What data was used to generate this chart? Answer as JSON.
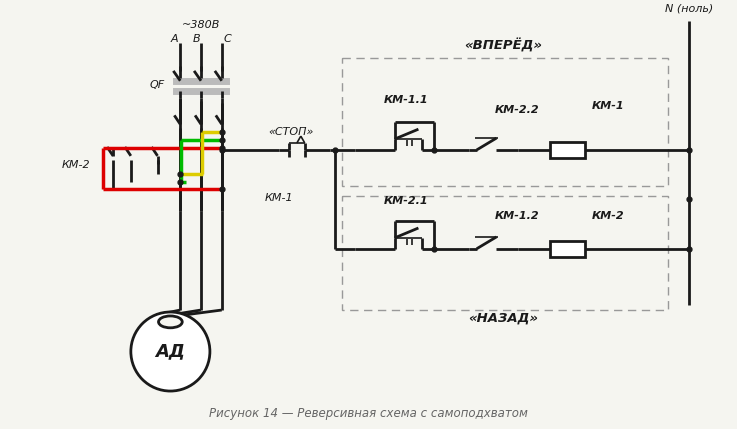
{
  "title": "Рисунок 14 — Реверсивная схема с самоподхватом",
  "title_color": "#666666",
  "title_fontsize": 8.5,
  "bg_color": "#f5f5f0",
  "line_color": "#1a1a1a",
  "dashed_box_color": "#999999",
  "label_380": "~380В",
  "label_A": "A",
  "label_B": "B",
  "label_C": "C",
  "label_QF": "QF",
  "label_KM1_left": "КМ-1",
  "label_KM2_left": "КМ-2",
  "label_AD": "АД",
  "label_STOP": "«СТОП»",
  "label_FORWARD": "«ВПЕРЁД»",
  "label_BACK": "«НАЗАД»",
  "label_N": "N (ноль)",
  "label_KM11": "КМ-1.1",
  "label_KM22": "КМ-2.2",
  "label_KM1coil": "КМ-1",
  "label_KM21": "КМ-2.1",
  "label_KM12": "КМ-1.2",
  "label_KM2coil": "КМ-2",
  "red_color": "#dd0000",
  "green_color": "#00bb00",
  "yellow_color": "#ddcc00",
  "gray_color": "#bbbbbb"
}
